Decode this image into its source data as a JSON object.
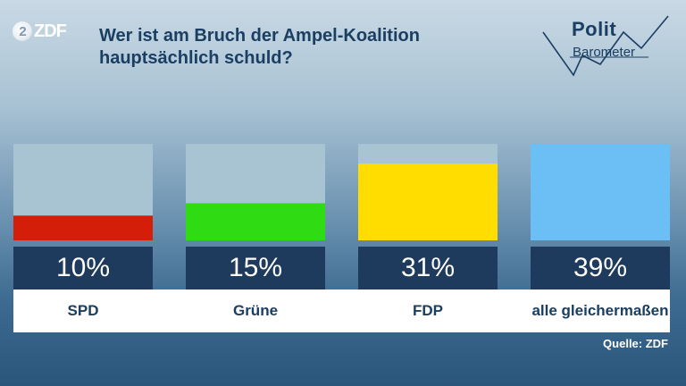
{
  "header": {
    "logo_text": "ZDF",
    "title_line1": "Wer ist am Bruch der Ampel-Koalition",
    "title_line2": "hauptsächlich schuld?",
    "brand_polit": "Polit",
    "brand_barometer": "Barometer"
  },
  "colors": {
    "spd": "#d41e0a",
    "gruene": "#2fdc14",
    "fdp": "#ffdd00",
    "alle": "#6bbff5",
    "track": "#a8c3d2",
    "value_box": "#1e3a5c"
  },
  "chart_data": {
    "type": "bar",
    "categories": [
      "SPD",
      "Grüne",
      "FDP",
      "alle gleichermaßen"
    ],
    "values": [
      10,
      15,
      31,
      39
    ],
    "value_labels": [
      "10%",
      "15%",
      "31%",
      "39%"
    ],
    "ylim": [
      0,
      39
    ],
    "title": "Wer ist am Bruch der Ampel-Koalition hauptsächlich schuld?"
  },
  "footer": {
    "source": "Quelle: ZDF"
  }
}
